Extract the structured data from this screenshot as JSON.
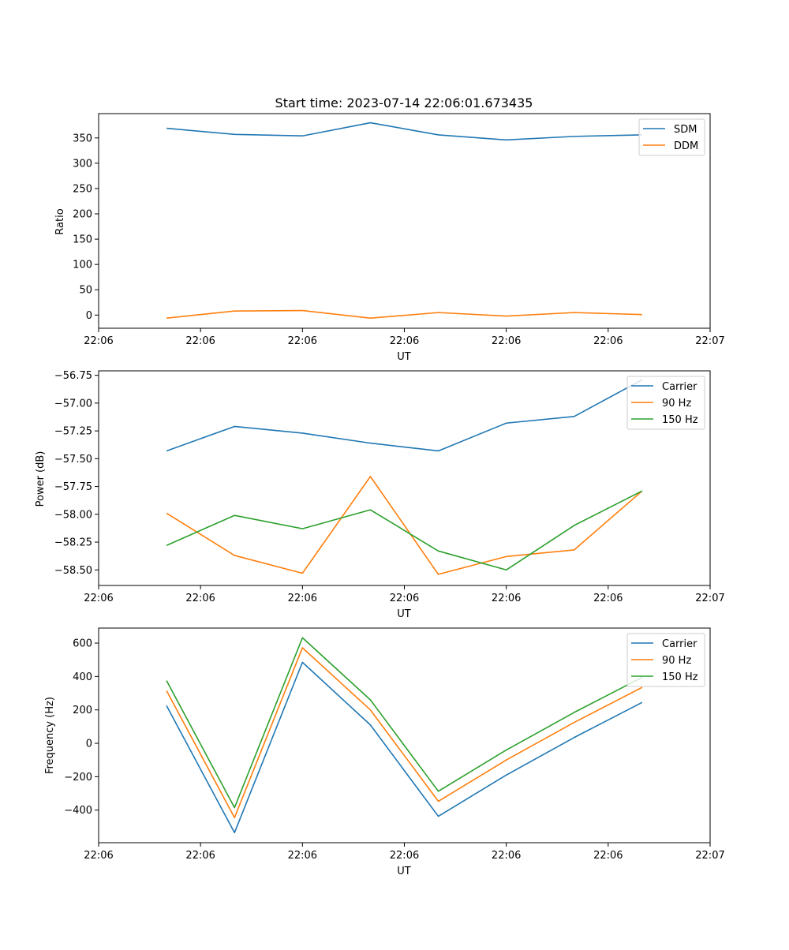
{
  "colors": {
    "blue": "#1f77b4",
    "orange": "#ff7f0e",
    "green": "#2ca02c"
  },
  "chart_data": [
    {
      "type": "line",
      "title": "Start time: 2023-07-14 22:06:01.673435",
      "xlabel": "UT",
      "ylabel": "Ratio",
      "xlim": [
        -1,
        8
      ],
      "ylim": [
        -26,
        398
      ],
      "xtick_positions": [
        -1,
        0.5,
        2,
        3.5,
        5,
        6.5,
        8
      ],
      "xtick_labels": [
        "22:06",
        "22:06",
        "22:06",
        "22:06",
        "22:06",
        "22:06",
        "22:07"
      ],
      "yticks": [
        0,
        50,
        100,
        150,
        200,
        250,
        300,
        350
      ],
      "ytick_labels": [
        "0",
        "50",
        "100",
        "150",
        "200",
        "250",
        "300",
        "350"
      ],
      "legend_position": "top-right",
      "series": [
        {
          "name": "SDM",
          "color": "blue",
          "values": [
            369,
            357,
            354,
            380,
            356,
            346,
            353,
            356
          ]
        },
        {
          "name": "DDM",
          "color": "orange",
          "values": [
            -6,
            8,
            9,
            -6,
            5,
            -2,
            5,
            1
          ]
        }
      ]
    },
    {
      "type": "line",
      "title": "",
      "xlabel": "UT",
      "ylabel": "Power (dB)",
      "xlim": [
        -1,
        8
      ],
      "ylim": [
        -58.64,
        -56.71
      ],
      "xtick_positions": [
        -1,
        0.5,
        2,
        3.5,
        5,
        6.5,
        8
      ],
      "xtick_labels": [
        "22:06",
        "22:06",
        "22:06",
        "22:06",
        "22:06",
        "22:06",
        "22:07"
      ],
      "yticks": [
        -58.5,
        -58.25,
        -58.0,
        -57.75,
        -57.5,
        -57.25,
        -57.0,
        -56.75
      ],
      "ytick_labels": [
        "−58.50",
        "−58.25",
        "−58.00",
        "−57.75",
        "−57.50",
        "−57.25",
        "−57.00",
        "−56.75"
      ],
      "legend_position": "top-right",
      "series": [
        {
          "name": "Carrier",
          "color": "blue",
          "values": [
            -57.43,
            -57.21,
            -57.27,
            -57.36,
            -57.43,
            -57.18,
            -57.12,
            -56.79
          ]
        },
        {
          "name": "90 Hz",
          "color": "orange",
          "values": [
            -57.99,
            -58.37,
            -58.53,
            -57.66,
            -58.54,
            -58.38,
            -58.32,
            -57.79
          ]
        },
        {
          "name": "150 Hz",
          "color": "green",
          "values": [
            -58.28,
            -58.01,
            -58.13,
            -57.96,
            -58.33,
            -58.5,
            -58.1,
            -57.79
          ]
        }
      ]
    },
    {
      "type": "line",
      "title": "",
      "xlabel": "UT",
      "ylabel": "Frequency (Hz)",
      "xlim": [
        -1,
        8
      ],
      "ylim": [
        -595,
        690
      ],
      "xtick_positions": [
        -1,
        0.5,
        2,
        3.5,
        5,
        6.5,
        8
      ],
      "xtick_labels": [
        "22:06",
        "22:06",
        "22:06",
        "22:06",
        "22:06",
        "22:06",
        "22:07"
      ],
      "yticks": [
        -400,
        -200,
        0,
        200,
        400,
        600
      ],
      "ytick_labels": [
        "−400",
        "−200",
        "0",
        "200",
        "400",
        "600"
      ],
      "legend_position": "top-right",
      "series": [
        {
          "name": "Carrier",
          "color": "blue",
          "values": [
            225,
            -535,
            485,
            110,
            -437,
            -190,
            35,
            245
          ]
        },
        {
          "name": "90 Hz",
          "color": "orange",
          "values": [
            315,
            -445,
            572,
            200,
            -347,
            -100,
            125,
            335
          ]
        },
        {
          "name": "150 Hz",
          "color": "green",
          "values": [
            375,
            -385,
            632,
            260,
            -287,
            -40,
            185,
            395
          ]
        }
      ]
    }
  ]
}
